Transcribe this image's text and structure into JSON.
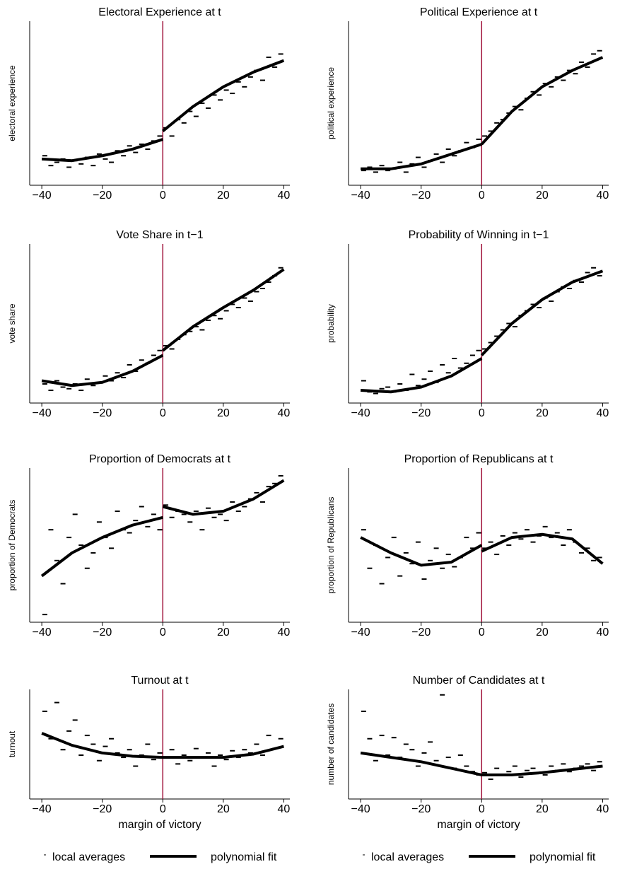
{
  "chart_data": [
    {
      "type": "scatter",
      "title": "Electoral Experience at t",
      "ylabel": "electoral experience",
      "xlim": [
        -44,
        42
      ],
      "ylim": [
        0,
        100
      ],
      "cutoff": 0,
      "cutoff_color": "#a0143c",
      "xticks": [
        {
          "value": -40,
          "label": "−40"
        },
        {
          "value": -20,
          "label": "−20"
        },
        0,
        20,
        40
      ],
      "series": [
        {
          "name": "local averages",
          "color": "#000000",
          "x": [
            -39,
            -37,
            -35,
            -33,
            -31,
            -29,
            -27,
            -25,
            -23,
            -21,
            -19,
            -17,
            -15,
            -13,
            -11,
            -9,
            -7,
            -5,
            -3,
            -1,
            1,
            3,
            5,
            7,
            9,
            11,
            13,
            15,
            17,
            19,
            21,
            23,
            25,
            27,
            29,
            31,
            33,
            35,
            37,
            39
          ],
          "values": [
            18,
            12,
            14,
            16,
            11,
            15,
            13,
            17,
            12,
            19,
            16,
            14,
            21,
            18,
            24,
            20,
            25,
            22,
            27,
            30,
            35,
            30,
            40,
            38,
            45,
            42,
            50,
            47,
            55,
            52,
            58,
            56,
            63,
            60,
            66,
            70,
            64,
            78,
            72,
            80
          ]
        },
        {
          "name": "polynomial fit",
          "color": "#000000",
          "x": [
            -40,
            -30,
            -20,
            -10,
            0,
            0,
            0,
            10,
            20,
            30,
            40
          ],
          "values": [
            16,
            15,
            18,
            22,
            28,
            null,
            33,
            48,
            60,
            69,
            76
          ]
        }
      ]
    },
    {
      "type": "scatter",
      "title": "Political Experience at t",
      "ylabel": "political experience",
      "xlim": [
        -44,
        42
      ],
      "ylim": [
        0,
        100
      ],
      "cutoff": 0,
      "cutoff_color": "#a0143c",
      "xticks": [
        {
          "value": -40,
          "label": "−40"
        },
        {
          "value": -20,
          "label": "−20"
        },
        0,
        20,
        40
      ],
      "series": [
        {
          "name": "local averages",
          "color": "#000000",
          "x": [
            -39,
            -37,
            -35,
            -33,
            -31,
            -29,
            -27,
            -25,
            -23,
            -21,
            -19,
            -17,
            -15,
            -13,
            -11,
            -9,
            -7,
            -5,
            -3,
            -1,
            1,
            3,
            5,
            7,
            9,
            11,
            13,
            15,
            17,
            19,
            21,
            23,
            25,
            27,
            29,
            31,
            33,
            35,
            37,
            39
          ],
          "values": [
            9,
            11,
            8,
            12,
            9,
            10,
            14,
            8,
            13,
            17,
            11,
            15,
            19,
            14,
            22,
            18,
            21,
            26,
            23,
            28,
            30,
            33,
            38,
            40,
            44,
            48,
            46,
            53,
            57,
            55,
            62,
            60,
            66,
            64,
            70,
            68,
            75,
            72,
            80,
            82
          ]
        },
        {
          "name": "polynomial fit",
          "color": "#000000",
          "x": [
            -40,
            -30,
            -20,
            -10,
            0,
            0,
            0,
            10,
            20,
            30,
            40
          ],
          "values": [
            10,
            10,
            13,
            19,
            25,
            null,
            25,
            45,
            60,
            70,
            78
          ]
        }
      ]
    },
    {
      "type": "scatter",
      "title": "Vote Share in t−1",
      "ylabel": "vote share",
      "xlim": [
        -44,
        42
      ],
      "ylim": [
        0,
        100
      ],
      "cutoff": 0,
      "cutoff_color": "#a0143c",
      "xticks": [
        {
          "value": -40,
          "label": "−40"
        },
        {
          "value": -20,
          "label": "−20"
        },
        0,
        20,
        40
      ],
      "series": [
        {
          "name": "local averages",
          "color": "#000000",
          "x": [
            -39,
            -37,
            -35,
            -33,
            -31,
            -29,
            -27,
            -25,
            -23,
            -21,
            -19,
            -17,
            -15,
            -13,
            -11,
            -9,
            -7,
            -5,
            -3,
            -1,
            1,
            3,
            5,
            7,
            9,
            11,
            13,
            15,
            17,
            19,
            21,
            23,
            25,
            27,
            29,
            31,
            33,
            35,
            37,
            39
          ],
          "values": [
            12,
            8,
            14,
            10,
            9,
            12,
            8,
            15,
            11,
            13,
            17,
            14,
            19,
            16,
            24,
            20,
            27,
            25,
            30,
            33,
            36,
            34,
            40,
            43,
            45,
            48,
            46,
            52,
            55,
            53,
            58,
            62,
            60,
            66,
            64,
            70,
            72,
            76,
            80,
            85
          ]
        },
        {
          "name": "polynomial fit",
          "color": "#000000",
          "x": [
            -40,
            -30,
            -20,
            -10,
            0,
            0,
            0,
            10,
            20,
            30,
            40
          ],
          "values": [
            14,
            11,
            13,
            20,
            30,
            null,
            33,
            48,
            60,
            71,
            84
          ]
        }
      ]
    },
    {
      "type": "scatter",
      "title": "Probability of Winning in t−1",
      "ylabel": "probability",
      "xlim": [
        -44,
        42
      ],
      "ylim": [
        0,
        100
      ],
      "cutoff": 0,
      "cutoff_color": "#a0143c",
      "xticks": [
        {
          "value": -40,
          "label": "−40"
        },
        {
          "value": -20,
          "label": "−20"
        },
        0,
        20,
        40
      ],
      "series": [
        {
          "name": "local averages",
          "color": "#000000",
          "x": [
            -39,
            -37,
            -35,
            -33,
            -31,
            -29,
            -27,
            -25,
            -23,
            -21,
            -19,
            -17,
            -15,
            -13,
            -11,
            -9,
            -7,
            -5,
            -3,
            -1,
            1,
            3,
            5,
            7,
            9,
            11,
            13,
            15,
            17,
            19,
            21,
            23,
            25,
            27,
            29,
            31,
            33,
            35,
            37,
            39
          ],
          "values": [
            14,
            7,
            6,
            9,
            10,
            7,
            12,
            8,
            18,
            11,
            15,
            20,
            13,
            24,
            19,
            28,
            22,
            25,
            30,
            33,
            34,
            38,
            42,
            46,
            50,
            48,
            55,
            58,
            62,
            60,
            66,
            64,
            70,
            73,
            72,
            77,
            76,
            82,
            85,
            80
          ]
        },
        {
          "name": "polynomial fit",
          "color": "#000000",
          "x": [
            -40,
            -30,
            -20,
            -10,
            0,
            0,
            0,
            10,
            20,
            30,
            40
          ],
          "values": [
            8,
            7,
            10,
            17,
            28,
            null,
            30,
            50,
            65,
            76,
            83
          ]
        }
      ]
    },
    {
      "type": "scatter",
      "title": "Proportion of Democrats at t",
      "ylabel": "proportion of Democrats",
      "xlim": [
        -44,
        42
      ],
      "ylim": [
        0,
        100
      ],
      "cutoff": 0,
      "cutoff_color": "#a0143c",
      "xticks": [
        {
          "value": -40,
          "label": "−40"
        },
        {
          "value": -20,
          "label": "−20"
        },
        0,
        20,
        40
      ],
      "series": [
        {
          "name": "local averages",
          "color": "#000000",
          "x": [
            -39,
            -37,
            -35,
            -33,
            -31,
            -29,
            -27,
            -25,
            -23,
            -21,
            -19,
            -17,
            -15,
            -13,
            -11,
            -9,
            -7,
            -5,
            -3,
            -1,
            1,
            3,
            5,
            7,
            9,
            11,
            13,
            15,
            17,
            19,
            21,
            23,
            25,
            27,
            29,
            31,
            33,
            35,
            37,
            39
          ],
          "values": [
            5,
            60,
            40,
            25,
            55,
            70,
            50,
            35,
            45,
            65,
            55,
            48,
            72,
            60,
            58,
            66,
            75,
            62,
            70,
            60,
            76,
            68,
            72,
            70,
            65,
            72,
            60,
            74,
            68,
            70,
            66,
            78,
            72,
            75,
            80,
            84,
            78,
            88,
            90,
            95
          ]
        },
        {
          "name": "polynomial fit",
          "color": "#000000",
          "x": [
            -40,
            -30,
            -20,
            -10,
            0,
            0,
            0,
            10,
            20,
            30,
            40
          ],
          "values": [
            30,
            45,
            55,
            63,
            68,
            null,
            75,
            70,
            72,
            80,
            92
          ]
        }
      ]
    },
    {
      "type": "scatter",
      "title": "Proportion of Republicans at t",
      "ylabel": "proportion of Republicans",
      "xlim": [
        -44,
        42
      ],
      "ylim": [
        0,
        100
      ],
      "cutoff": 0,
      "cutoff_color": "#a0143c",
      "xticks": [
        {
          "value": -40,
          "label": "−40"
        },
        {
          "value": -20,
          "label": "−20"
        },
        0,
        20,
        40
      ],
      "series": [
        {
          "name": "local averages",
          "color": "#000000",
          "x": [
            -39,
            -37,
            -35,
            -33,
            -31,
            -29,
            -27,
            -25,
            -23,
            -21,
            -19,
            -17,
            -15,
            -13,
            -11,
            -9,
            -7,
            -5,
            -3,
            -1,
            1,
            3,
            5,
            7,
            9,
            11,
            13,
            15,
            17,
            19,
            21,
            23,
            25,
            27,
            29,
            31,
            33,
            35,
            37,
            39
          ],
          "values": [
            60,
            35,
            50,
            25,
            42,
            55,
            30,
            45,
            38,
            52,
            28,
            40,
            48,
            35,
            44,
            36,
            42,
            55,
            48,
            58,
            48,
            52,
            44,
            56,
            50,
            58,
            54,
            60,
            52,
            56,
            62,
            55,
            58,
            50,
            60,
            52,
            45,
            48,
            40,
            42
          ]
        },
        {
          "name": "polynomial fit",
          "color": "#000000",
          "x": [
            -40,
            -30,
            -20,
            -10,
            0,
            0,
            0,
            10,
            20,
            30,
            40
          ],
          "values": [
            55,
            45,
            37,
            39,
            50,
            null,
            46,
            55,
            57,
            54,
            38
          ]
        }
      ]
    },
    {
      "type": "scatter",
      "title": "Turnout at t",
      "ylabel": "turnout",
      "xlabel": "margin of victory",
      "xlim": [
        -44,
        42
      ],
      "ylim": [
        0,
        100
      ],
      "cutoff": 0,
      "cutoff_color": "#a0143c",
      "xticks": [
        {
          "value": -40,
          "label": "−40"
        },
        {
          "value": -20,
          "label": "−20"
        },
        0,
        20,
        40
      ],
      "series": [
        {
          "name": "local averages",
          "color": "#000000",
          "x": [
            -39,
            -37,
            -35,
            -33,
            -31,
            -29,
            -27,
            -25,
            -23,
            -21,
            -19,
            -17,
            -15,
            -13,
            -11,
            -9,
            -7,
            -5,
            -3,
            -1,
            1,
            3,
            5,
            7,
            9,
            11,
            13,
            15,
            17,
            19,
            21,
            23,
            25,
            27,
            29,
            31,
            33,
            35,
            37,
            39
          ],
          "values": [
            80,
            55,
            88,
            45,
            62,
            72,
            40,
            58,
            50,
            35,
            48,
            55,
            42,
            38,
            45,
            30,
            40,
            50,
            36,
            42,
            38,
            45,
            32,
            40,
            35,
            46,
            38,
            42,
            30,
            40,
            36,
            44,
            38,
            45,
            42,
            50,
            40,
            58,
            46,
            55
          ]
        },
        {
          "name": "polynomial fit",
          "color": "#000000",
          "x": [
            -40,
            -30,
            -20,
            -10,
            0,
            10,
            20,
            30,
            40
          ],
          "values": [
            60,
            49,
            42,
            39,
            38,
            38,
            38,
            41,
            48
          ]
        }
      ]
    },
    {
      "type": "scatter",
      "title": "Number of Candidates at t",
      "ylabel": "number of candidates",
      "xlabel": "margin of victory",
      "xlim": [
        -44,
        42
      ],
      "ylim": [
        0,
        100
      ],
      "cutoff": 0,
      "cutoff_color": "#a0143c",
      "xticks": [
        {
          "value": -40,
          "label": "−40"
        },
        {
          "value": -20,
          "label": "−20"
        },
        0,
        20,
        40
      ],
      "series": [
        {
          "name": "local averages",
          "color": "#000000",
          "x": [
            -39,
            -37,
            -35,
            -33,
            -31,
            -29,
            -27,
            -25,
            -23,
            -21,
            -19,
            -17,
            -15,
            -13,
            -11,
            -9,
            -7,
            -5,
            -3,
            -1,
            1,
            3,
            5,
            7,
            9,
            11,
            13,
            15,
            17,
            19,
            21,
            23,
            25,
            27,
            29,
            31,
            33,
            35,
            37,
            39
          ],
          "values": [
            80,
            55,
            35,
            58,
            40,
            56,
            38,
            50,
            45,
            30,
            42,
            52,
            35,
            95,
            38,
            28,
            40,
            30,
            25,
            22,
            24,
            18,
            28,
            22,
            25,
            30,
            20,
            26,
            28,
            24,
            22,
            30,
            26,
            32,
            25,
            28,
            30,
            32,
            26,
            34
          ]
        },
        {
          "name": "polynomial fit",
          "color": "#000000",
          "x": [
            -40,
            -30,
            -20,
            -10,
            0,
            10,
            20,
            30,
            40
          ],
          "values": [
            42,
            38,
            34,
            28,
            22,
            22,
            24,
            27,
            30
          ]
        }
      ]
    }
  ]
}
